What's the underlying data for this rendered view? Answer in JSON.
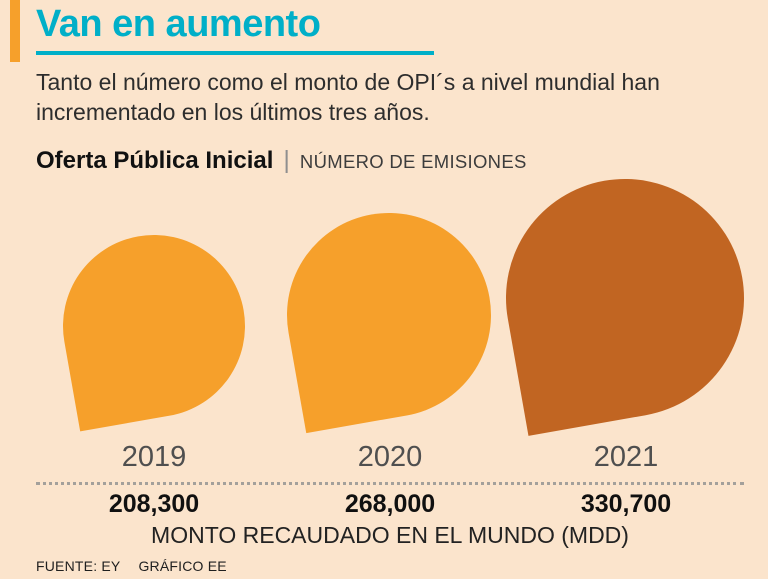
{
  "colors": {
    "background": "#FBE4CC",
    "title": "#00AFC8",
    "orange": "#F6A02B",
    "sienna": "#C16522"
  },
  "header": {
    "title": "Van en aumento",
    "description": "Tanto el número como el monto de OPI´s a nivel mundial han incrementado en los últimos tres años.",
    "section_title": "Oferta Pública Inicial",
    "section_separator": "|",
    "section_label": "NÚMERO DE EMISIONES"
  },
  "chart_data": {
    "type": "bar",
    "variant": "pictorial-teardrop",
    "title": "Oferta Pública Inicial | NÚMERO DE EMISIONES",
    "categories": [
      "2019",
      "2020",
      "2021"
    ],
    "series": [
      {
        "name": "Monto recaudado en el mundo (MDD)",
        "values": [
          208300,
          268000,
          330700
        ]
      }
    ],
    "value_labels": [
      "208,300",
      "268,000",
      "330,700"
    ],
    "xlabel": "MONTO RECAUDADO EN EL MUNDO (MDD)",
    "ylabel": "",
    "colors": [
      "#F6A02B",
      "#F6A02B",
      "#C16522"
    ],
    "legend": "none",
    "grid": false
  },
  "chart": {
    "items": [
      {
        "year": "2019",
        "value": "208,300",
        "color": "#F6A02B",
        "size": 182
      },
      {
        "year": "2020",
        "value": "268,000",
        "color": "#F6A02B",
        "size": 204
      },
      {
        "year": "2021",
        "value": "330,700",
        "color": "#C16522",
        "size": 238
      }
    ],
    "amount_label": "MONTO RECAUDADO EN EL MUNDO (MDD)"
  },
  "footer": {
    "source": "FUENTE: EY",
    "credit": "GRÁFICO EE"
  }
}
